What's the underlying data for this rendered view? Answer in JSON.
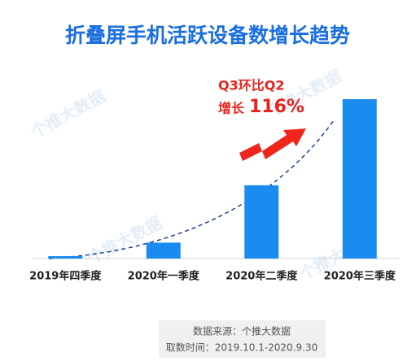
{
  "chart_data": {
    "type": "bar",
    "title": "折叠屏手机活跃设备数增长趋势",
    "categories": [
      "2019年四季度",
      "2020年一季度",
      "2020年二季度",
      "2020年三季度"
    ],
    "values": [
      1.5,
      10,
      46,
      100
    ],
    "color": "#1a8cf0",
    "ylim": [
      0,
      100
    ],
    "annotation": [
      "Q3环比Q2",
      "增长",
      "116%"
    ],
    "source": [
      "数据来源：个推大数据",
      "取数时间：2019.10.1-2020.9.30"
    ],
    "watermark": "个推大数据"
  }
}
